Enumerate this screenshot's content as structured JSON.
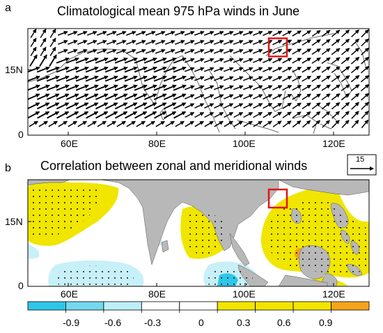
{
  "panel_a": {
    "letter": "a",
    "title": "Climatological mean 975 hPa winds in June",
    "x_ticks": [
      "60E",
      "80E",
      "100E",
      "120E"
    ],
    "y_ticks": [
      "15N",
      "0"
    ]
  },
  "panel_b": {
    "letter": "b",
    "title": "Correlation between zonal and meridional winds",
    "x_ticks": [
      "60E",
      "80E",
      "100E",
      "120E"
    ],
    "y_ticks": [
      "15N",
      "0"
    ]
  },
  "reference_vector": {
    "label": "15"
  },
  "colorbar": {
    "labels": [
      "-0.9",
      "-0.6",
      "-0.3",
      "0",
      "0.3",
      "0.6",
      "0.9"
    ],
    "colors": [
      "#2fc7e8",
      "#74d8ee",
      "#bdeff8",
      "#ffffff",
      "#ffffff",
      "#f2e600",
      "#f2e600",
      "#f2e600",
      "#f5a31a"
    ]
  },
  "colors": {
    "land": "#b8b8b8",
    "positive": "#f0e600",
    "negative_light": "#c8f0f8",
    "negative_strong": "#2fc7e8",
    "max_positive": "#f5a31a",
    "highlight_box": "#e41414"
  }
}
